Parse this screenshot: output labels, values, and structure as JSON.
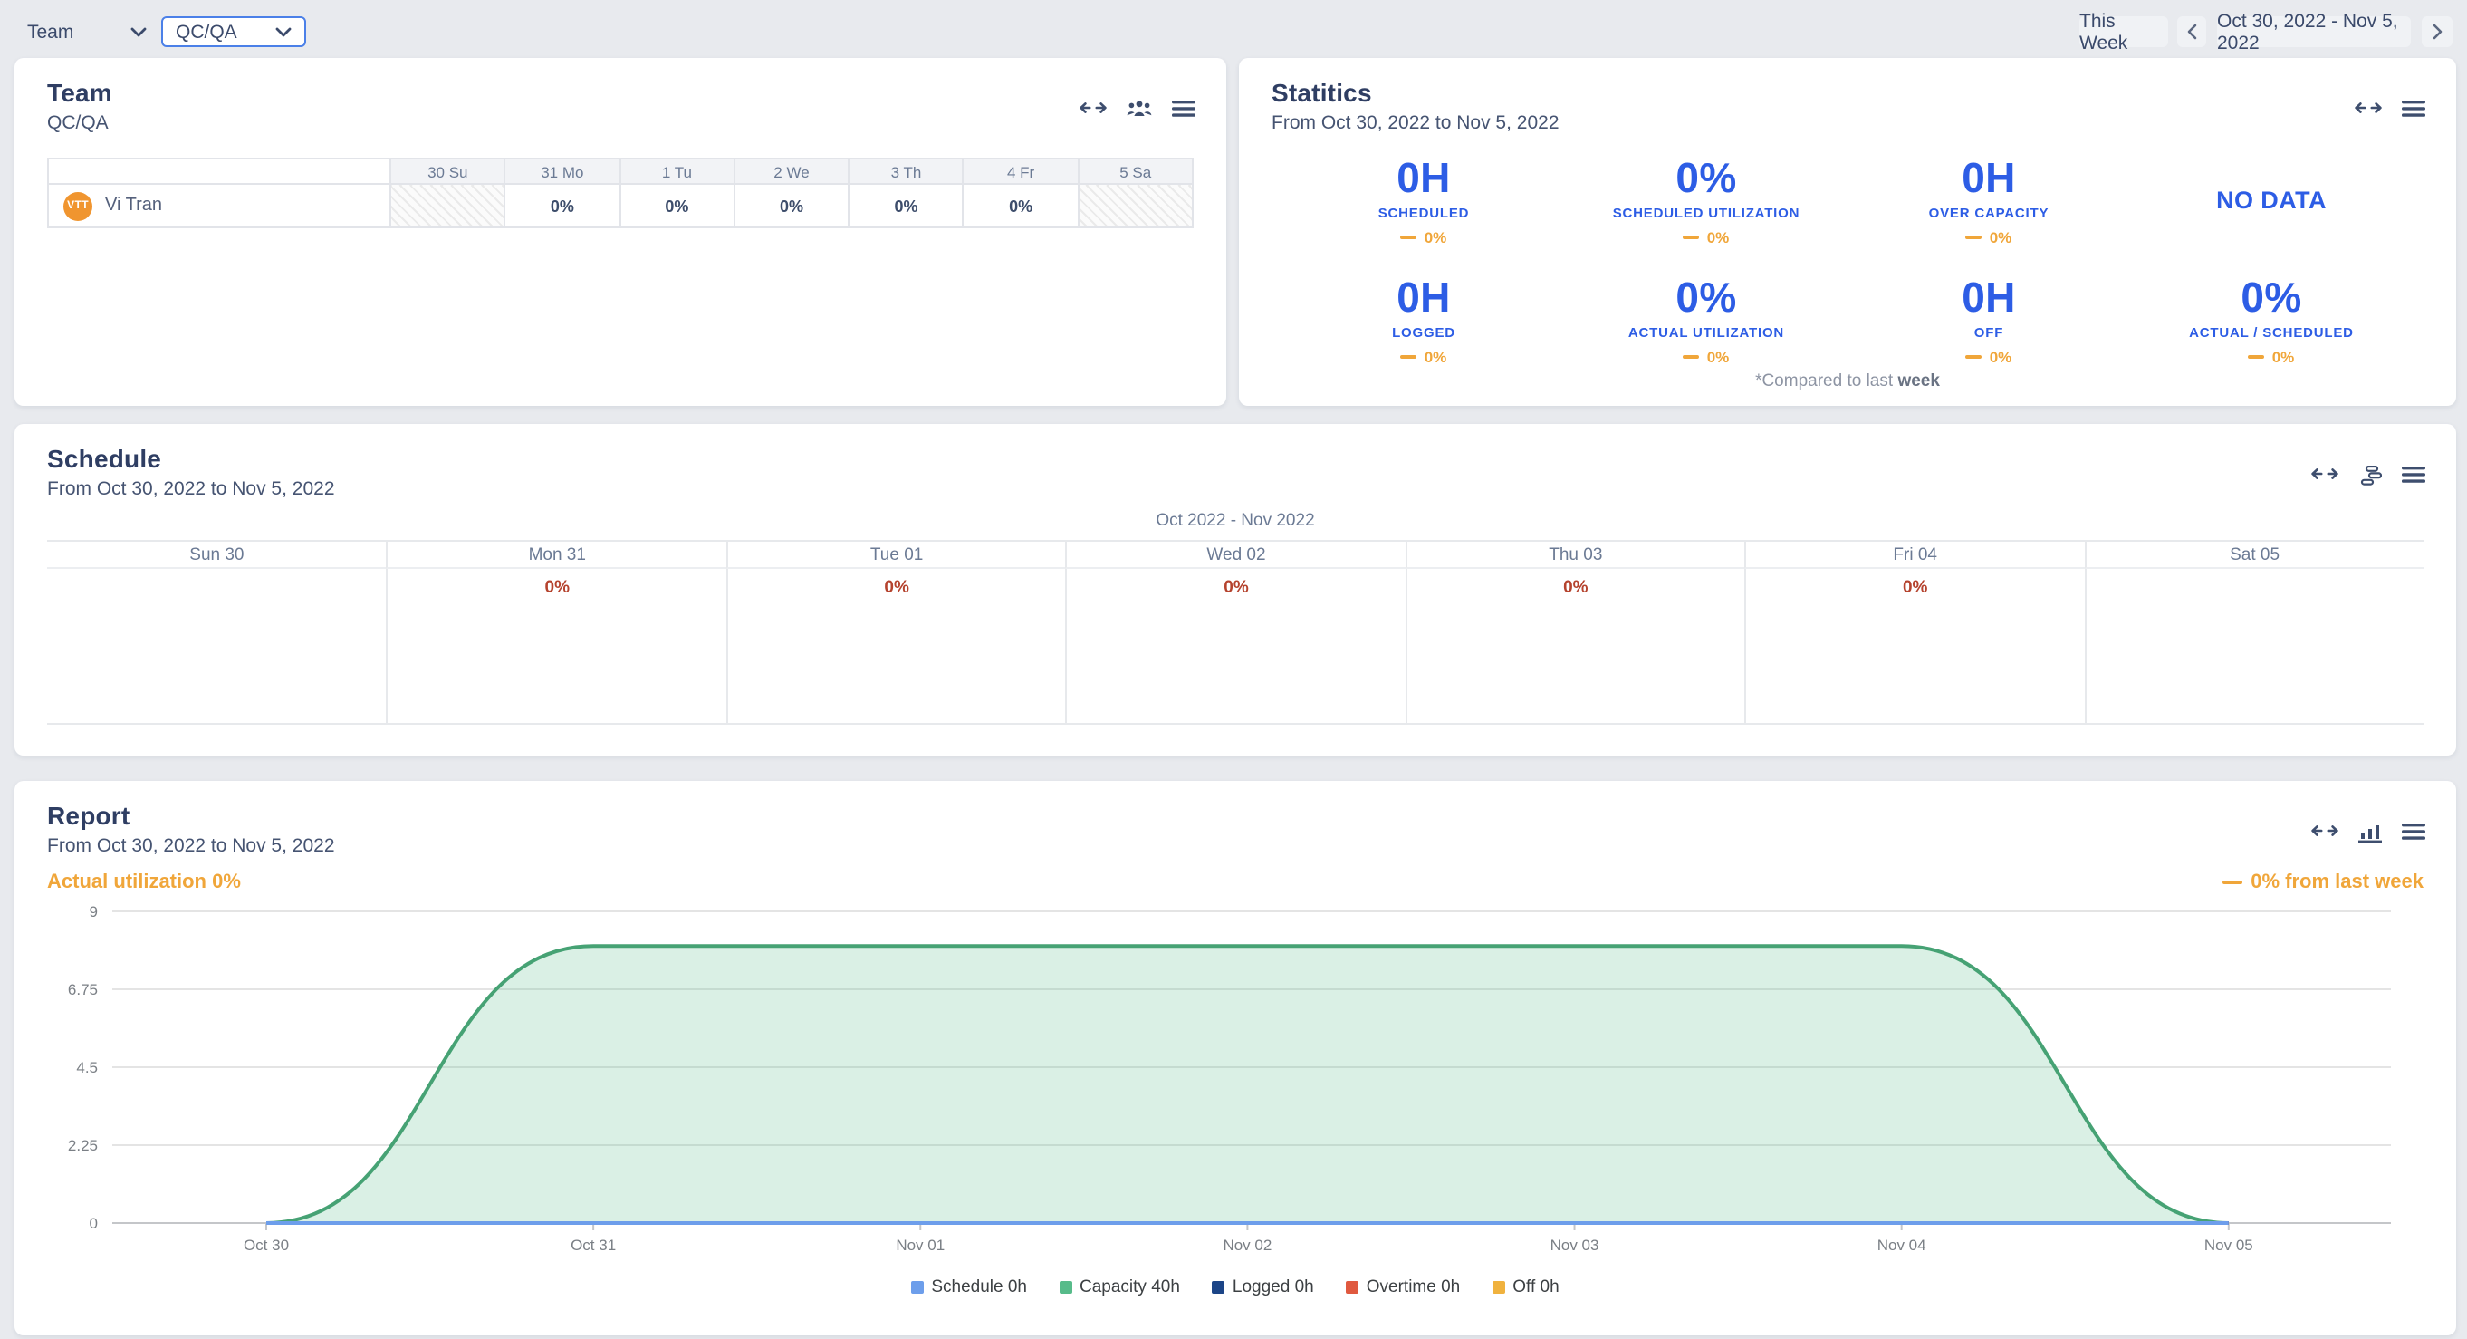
{
  "topbar": {
    "team_filter": {
      "value": "Team"
    },
    "team_value_filter": {
      "value": "QC/QA"
    },
    "this_week_label": "This Week",
    "date_range": "Oct 30, 2022 - Nov 5, 2022"
  },
  "team_panel": {
    "title": "Team",
    "subtitle": "QC/QA",
    "columns": [
      "30 Su",
      "31 Mo",
      "1 Tu",
      "2 We",
      "3 Th",
      "4 Fr",
      "5 Sa"
    ],
    "row": {
      "initials": "VTT",
      "name": "Vi Tran",
      "values": [
        "",
        "0%",
        "0%",
        "0%",
        "0%",
        "0%",
        ""
      ]
    }
  },
  "statistics_panel": {
    "title": "Statitics",
    "subtitle": "From Oct 30, 2022 to Nov 5, 2022",
    "stats": [
      {
        "value": "0H",
        "label": "SCHEDULED",
        "delta": "0%"
      },
      {
        "value": "0%",
        "label": "SCHEDULED UTILIZATION",
        "delta": "0%"
      },
      {
        "value": "0H",
        "label": "OVER CAPACITY",
        "delta": "0%"
      },
      {
        "value": "NO DATA",
        "label": "",
        "delta": ""
      },
      {
        "value": "0H",
        "label": "LOGGED",
        "delta": "0%"
      },
      {
        "value": "0%",
        "label": "ACTUAL UTILIZATION",
        "delta": "0%"
      },
      {
        "value": "0H",
        "label": "OFF",
        "delta": "0%"
      },
      {
        "value": "0%",
        "label": "ACTUAL / SCHEDULED",
        "delta": "0%"
      }
    ],
    "footnote_prefix": "*Compared to last ",
    "footnote_bold": "week"
  },
  "schedule_panel": {
    "title": "Schedule",
    "subtitle": "From Oct 30, 2022 to Nov 5, 2022",
    "month_range": "Oct 2022 - Nov 2022",
    "days": [
      {
        "label": "Sun 30",
        "value": ""
      },
      {
        "label": "Mon 31",
        "value": "0%"
      },
      {
        "label": "Tue 01",
        "value": "0%"
      },
      {
        "label": "Wed 02",
        "value": "0%"
      },
      {
        "label": "Thu 03",
        "value": "0%"
      },
      {
        "label": "Fri 04",
        "value": "0%"
      },
      {
        "label": "Sat 05",
        "value": ""
      }
    ]
  },
  "report_panel": {
    "title": "Report",
    "subtitle": "From Oct 30, 2022 to Nov 5, 2022",
    "actual_utilization_label": "Actual utilization 0%",
    "delta_label": "0% from last week",
    "chart_data": {
      "type": "area",
      "x": [
        "Oct 30",
        "Oct 31",
        "Nov 01",
        "Nov 02",
        "Nov 03",
        "Nov 04",
        "Nov 05"
      ],
      "series": [
        {
          "name": "Schedule 0h",
          "color": "#6d9eeb",
          "values": [
            0,
            0,
            0,
            0,
            0,
            0,
            0
          ]
        },
        {
          "name": "Capacity 40h",
          "color": "#57bb8a",
          "stroke": "#46a274",
          "values": [
            0,
            8,
            8,
            8,
            8,
            8,
            0
          ]
        },
        {
          "name": "Logged 0h",
          "color": "#1c4587",
          "values": [
            0,
            0,
            0,
            0,
            0,
            0,
            0
          ]
        },
        {
          "name": "Overtime 0h",
          "color": "#e0593f",
          "values": [
            0,
            0,
            0,
            0,
            0,
            0,
            0
          ]
        },
        {
          "name": "Off 0h",
          "color": "#f0b23e",
          "values": [
            0,
            0,
            0,
            0,
            0,
            0,
            0
          ]
        }
      ],
      "yticks": [
        0,
        2.25,
        4.5,
        6.75,
        9
      ],
      "ylim": [
        0,
        9
      ],
      "grid": true,
      "legend_position": "bottom"
    }
  },
  "colors": {
    "accent_blue": "#2d5de5",
    "accent_orange": "#f0a63a",
    "negative_red": "#b5432e",
    "navy_text": "#2f3e63"
  }
}
